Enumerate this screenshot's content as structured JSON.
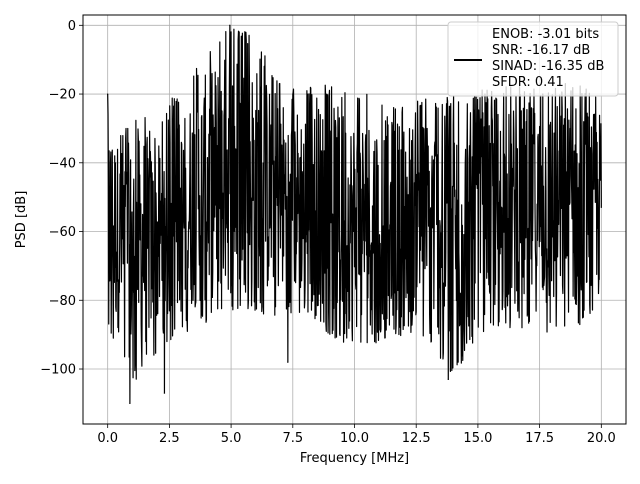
{
  "chart_data": {
    "type": "line",
    "title": "",
    "xlabel": "Frequency [MHz]",
    "ylabel": "PSD [dB]",
    "xlim": [
      -1.0,
      21.0
    ],
    "ylim": [
      -116,
      3
    ],
    "xticks": [
      0.0,
      2.5,
      5.0,
      7.5,
      10.0,
      12.5,
      15.0,
      17.5,
      20.0
    ],
    "xtick_labels": [
      "0.0",
      "2.5",
      "5.0",
      "7.5",
      "10.0",
      "12.5",
      "15.0",
      "17.5",
      "20.0"
    ],
    "yticks": [
      0,
      -20,
      -40,
      -60,
      -80,
      -100
    ],
    "ytick_labels": [
      "0",
      "−20",
      "−40",
      "−60",
      "−80",
      "−100"
    ],
    "grid": true,
    "legend_position": "top-right",
    "line_color": "#000000",
    "series": [
      {
        "name": "",
        "legend_lines": [
          "ENOB: -3.01 bits",
          "SNR: -16.17 dB",
          "SINAD: -16.35 dB",
          "SFDR: 0.41"
        ],
        "x_range": [
          0.0,
          20.0
        ],
        "envelope": {
          "x": [
            0.0,
            0.5,
            1.0,
            1.5,
            2.0,
            2.5,
            3.0,
            3.5,
            4.0,
            4.5,
            5.0,
            5.5,
            6.0,
            6.5,
            7.0,
            7.5,
            8.0,
            9.0,
            10.0,
            11.0,
            12.0,
            13.0,
            14.0,
            15.0,
            16.0,
            17.0,
            18.0,
            19.0,
            20.0
          ],
          "upper": [
            -20,
            -30,
            -28,
            -25,
            -33,
            -20,
            -22,
            -13,
            -8,
            -3,
            0,
            -1,
            -5,
            -10,
            -15,
            -18,
            -18,
            -17,
            -20,
            -20,
            -22,
            -21,
            -20,
            -19,
            -18,
            -17,
            -17,
            -16,
            -20
          ],
          "lower": [
            -90,
            -95,
            -105,
            -100,
            -95,
            -92,
            -90,
            -88,
            -87,
            -85,
            -85,
            -84,
            -83,
            -85,
            -84,
            -84,
            -84,
            -90,
            -95,
            -92,
            -90,
            -92,
            -103,
            -90,
            -90,
            -88,
            -90,
            -90,
            -85
          ]
        },
        "notable_points": [
          {
            "x": 0.0,
            "y": -20
          },
          {
            "x": 0.9,
            "y": -110
          },
          {
            "x": 2.3,
            "y": -107
          },
          {
            "x": 4.95,
            "y": 0
          },
          {
            "x": 7.3,
            "y": -98
          },
          {
            "x": 13.8,
            "y": -103
          }
        ]
      }
    ]
  }
}
